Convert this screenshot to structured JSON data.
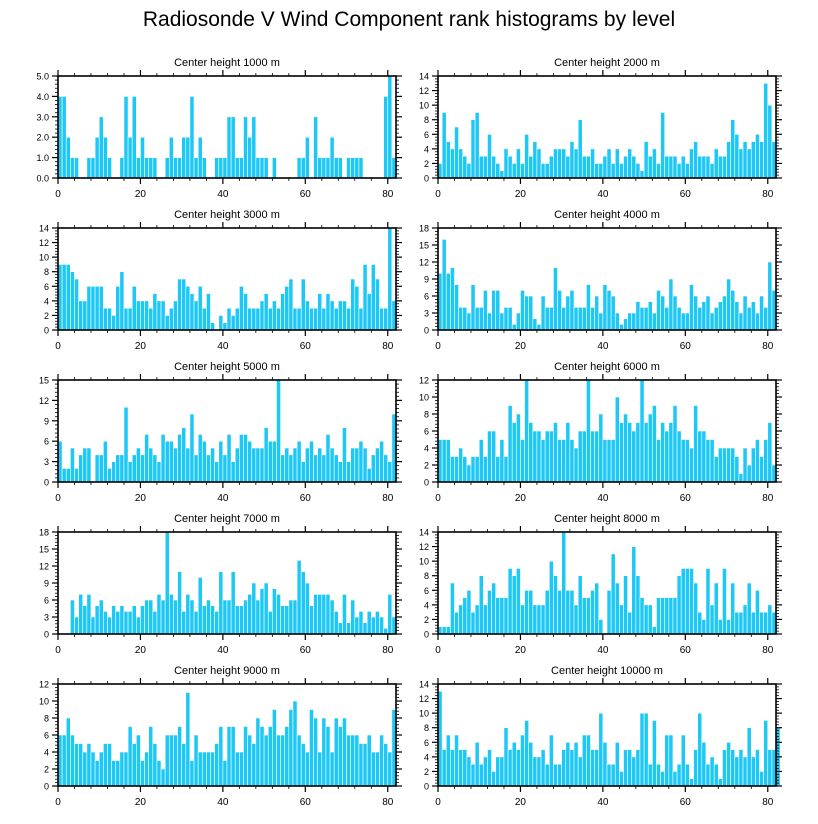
{
  "title": "Radiosonde V Wind Component rank histograms by level",
  "colors": {
    "bar": "#1ec8f5",
    "bar_edge": "#ffffff",
    "axis": "#000000"
  },
  "chart_data": [
    {
      "type": "bar",
      "title": "Center height 1000 m",
      "xlim": [
        0,
        82
      ],
      "xticks": [
        0,
        20,
        40,
        60,
        80
      ],
      "ylim": [
        0,
        5
      ],
      "yticks": [
        "0.0",
        "1.0",
        "2.0",
        "3.0",
        "4.0",
        "5.0"
      ],
      "ytick_values": [
        0,
        1,
        2,
        3,
        4,
        5
      ],
      "values": [
        4,
        4,
        2,
        1,
        1,
        0,
        0,
        1,
        1,
        2,
        3,
        2,
        1,
        0,
        0,
        1,
        4,
        2,
        4,
        1,
        2,
        1,
        1,
        1,
        0,
        0,
        1,
        2,
        1,
        1,
        2,
        2,
        4,
        1,
        2,
        1,
        0,
        0,
        1,
        1,
        1,
        3,
        3,
        1,
        1,
        3,
        2,
        3,
        1,
        1,
        1,
        0,
        1,
        0,
        0,
        0,
        0,
        0,
        1,
        1,
        2,
        0,
        3,
        1,
        1,
        1,
        2,
        1,
        1,
        0,
        1,
        1,
        1,
        1,
        0,
        0,
        0,
        0,
        0,
        4,
        5,
        1
      ]
    },
    {
      "type": "bar",
      "title": "Center height 2000 m",
      "xlim": [
        0,
        82
      ],
      "xticks": [
        0,
        20,
        40,
        60,
        80
      ],
      "ylim": [
        0,
        14
      ],
      "yticks": [
        "0",
        "2",
        "4",
        "6",
        "8",
        "10",
        "12",
        "14"
      ],
      "ytick_values": [
        0,
        2,
        4,
        6,
        8,
        10,
        12,
        14
      ],
      "values": [
        2,
        9,
        5,
        4,
        7,
        4,
        3,
        2,
        8,
        9,
        3,
        3,
        6,
        3,
        2,
        1,
        4,
        3,
        2,
        4,
        2,
        6,
        3,
        5,
        4,
        2,
        2,
        3,
        4,
        4,
        4,
        3,
        5,
        4,
        8,
        3,
        3,
        4,
        2,
        2,
        3,
        4,
        2,
        4,
        2,
        3,
        4,
        3,
        2,
        1,
        5,
        3,
        4,
        2,
        9,
        3,
        3,
        3,
        2,
        3,
        2,
        4,
        5,
        3,
        3,
        3,
        2,
        4,
        3,
        3,
        5,
        8,
        6,
        4,
        5,
        4,
        5,
        6,
        5,
        13,
        10,
        5
      ]
    },
    {
      "type": "bar",
      "title": "Center height 3000 m",
      "xlim": [
        0,
        82
      ],
      "xticks": [
        0,
        20,
        40,
        60,
        80
      ],
      "ylim": [
        0,
        14
      ],
      "yticks": [
        "0",
        "2",
        "4",
        "6",
        "8",
        "10",
        "12",
        "14"
      ],
      "ytick_values": [
        0,
        2,
        4,
        6,
        8,
        10,
        12,
        14
      ],
      "values": [
        9,
        9,
        9,
        8,
        7,
        4,
        4,
        6,
        6,
        6,
        6,
        3,
        3,
        2,
        6,
        8,
        3,
        3,
        6,
        4,
        4,
        4,
        3,
        5,
        4,
        4,
        2,
        3,
        4,
        7,
        7,
        6,
        5,
        4,
        6,
        3,
        5,
        1,
        0,
        2,
        1,
        3,
        2,
        3,
        6,
        5,
        3,
        3,
        3,
        4,
        5,
        3,
        4,
        3,
        5,
        6,
        7,
        3,
        3,
        7,
        4,
        3,
        3,
        5,
        3,
        5,
        4,
        3,
        4,
        4,
        3,
        7,
        6,
        3,
        9,
        5,
        9,
        7,
        3,
        3,
        14,
        4
      ]
    },
    {
      "type": "bar",
      "title": "Center height 4000 m",
      "xlim": [
        0,
        82
      ],
      "xticks": [
        0,
        20,
        40,
        60,
        80
      ],
      "ylim": [
        0,
        18
      ],
      "yticks": [
        "0",
        "3",
        "6",
        "9",
        "12",
        "15",
        "18"
      ],
      "ytick_values": [
        0,
        3,
        6,
        9,
        12,
        15,
        18
      ],
      "values": [
        10,
        16,
        10,
        11,
        8,
        4,
        4,
        3,
        8,
        4,
        4,
        7,
        3,
        7,
        7,
        3,
        4,
        4,
        1,
        3,
        7,
        6,
        6,
        2,
        1,
        6,
        4,
        4,
        11,
        7,
        4,
        6,
        7,
        4,
        4,
        4,
        8,
        4,
        6,
        3,
        8,
        7,
        6,
        3,
        1,
        2,
        3,
        3,
        5,
        4,
        4,
        5,
        3,
        7,
        6,
        4,
        9,
        6,
        4,
        3,
        3,
        8,
        6,
        4,
        5,
        6,
        3,
        4,
        5,
        6,
        9,
        7,
        5,
        3,
        6,
        4,
        5,
        3,
        6,
        4,
        12,
        7
      ]
    },
    {
      "type": "bar",
      "title": "Center height 5000 m",
      "xlim": [
        0,
        82
      ],
      "xticks": [
        0,
        20,
        40,
        60,
        80
      ],
      "ylim": [
        0,
        15
      ],
      "yticks": [
        "0",
        "3",
        "6",
        "9",
        "12",
        "15"
      ],
      "ytick_values": [
        0,
        3,
        6,
        9,
        12,
        15
      ],
      "values": [
        6,
        2,
        2,
        5,
        2,
        4,
        5,
        5,
        0,
        4,
        4,
        6,
        2,
        3,
        4,
        4,
        11,
        3,
        4,
        5,
        4,
        7,
        5,
        4,
        3,
        7,
        6,
        6,
        5,
        7,
        8,
        5,
        10,
        4,
        7,
        6,
        4,
        5,
        3,
        6,
        4,
        7,
        3,
        5,
        7,
        7,
        6,
        5,
        5,
        5,
        8,
        6,
        6,
        15,
        4,
        5,
        4,
        5,
        6,
        3,
        5,
        6,
        4,
        5,
        4,
        7,
        5,
        4,
        3,
        8,
        3,
        5,
        5,
        6,
        5,
        2,
        4,
        5,
        6,
        4,
        3,
        10
      ]
    },
    {
      "type": "bar",
      "title": "Center height 6000 m",
      "xlim": [
        0,
        82
      ],
      "xticks": [
        0,
        20,
        40,
        60,
        80
      ],
      "ylim": [
        0,
        12
      ],
      "yticks": [
        "0",
        "2",
        "4",
        "6",
        "8",
        "10",
        "12"
      ],
      "ytick_values": [
        0,
        2,
        4,
        6,
        8,
        10,
        12
      ],
      "values": [
        5,
        5,
        5,
        3,
        3,
        4,
        3,
        2,
        3,
        3,
        5,
        3,
        6,
        6,
        3,
        5,
        3,
        9,
        7,
        8,
        5,
        12,
        7,
        6,
        6,
        5,
        6,
        6,
        7,
        5,
        5,
        7,
        5,
        4,
        6,
        6,
        12,
        6,
        6,
        8,
        5,
        5,
        5,
        10,
        7,
        8,
        7,
        6,
        7,
        12,
        7,
        8,
        9,
        5,
        7,
        6,
        7,
        9,
        6,
        5,
        5,
        4,
        9,
        6,
        6,
        5,
        5,
        3,
        4,
        4,
        4,
        4,
        3,
        1,
        4,
        2,
        4,
        5,
        3,
        5,
        7,
        2
      ]
    },
    {
      "type": "bar",
      "title": "Center height 7000 m",
      "xlim": [
        0,
        82
      ],
      "xticks": [
        0,
        20,
        40,
        60,
        80
      ],
      "ylim": [
        0,
        18
      ],
      "yticks": [
        "0",
        "3",
        "6",
        "9",
        "12",
        "15",
        "18"
      ],
      "ytick_values": [
        0,
        3,
        6,
        9,
        12,
        15,
        18
      ],
      "values": [
        0,
        0,
        0,
        6,
        3,
        7,
        5,
        7,
        3,
        5,
        6,
        4,
        3,
        5,
        4,
        5,
        4,
        4,
        5,
        3,
        5,
        6,
        6,
        4,
        7,
        6,
        18,
        7,
        6,
        11,
        4,
        7,
        6,
        4,
        10,
        5,
        6,
        5,
        4,
        11,
        6,
        6,
        11,
        5,
        5,
        6,
        7,
        9,
        6,
        8,
        9,
        4,
        8,
        7,
        5,
        5,
        6,
        6,
        13,
        11,
        9,
        5,
        7,
        7,
        7,
        7,
        6,
        4,
        2,
        7,
        2,
        6,
        3,
        4,
        2,
        4,
        3,
        4,
        3,
        1,
        7,
        3
      ]
    },
    {
      "type": "bar",
      "title": "Center height 8000 m",
      "xlim": [
        0,
        82
      ],
      "xticks": [
        0,
        20,
        40,
        60,
        80
      ],
      "ylim": [
        0,
        14
      ],
      "yticks": [
        "0",
        "2",
        "4",
        "6",
        "8",
        "10",
        "12",
        "14"
      ],
      "ytick_values": [
        0,
        2,
        4,
        6,
        8,
        10,
        12,
        14
      ],
      "values": [
        1,
        1,
        1,
        7,
        3,
        4,
        5,
        6,
        3,
        4,
        8,
        4,
        6,
        7,
        5,
        5,
        5,
        9,
        8,
        9,
        4,
        6,
        6,
        4,
        4,
        4,
        6,
        10,
        8,
        6,
        14,
        6,
        6,
        4,
        8,
        5,
        5,
        6,
        7,
        2,
        0,
        6,
        11,
        7,
        4,
        8,
        3,
        12,
        8,
        5,
        4,
        4,
        1,
        5,
        5,
        5,
        5,
        5,
        8,
        9,
        9,
        9,
        7,
        3,
        2,
        9,
        4,
        7,
        2,
        9,
        2,
        7,
        3,
        3,
        4,
        7,
        3,
        6,
        3,
        3,
        4,
        3
      ]
    },
    {
      "type": "bar",
      "title": "Center height 9000 m",
      "xlim": [
        0,
        82
      ],
      "xticks": [
        0,
        20,
        40,
        60,
        80
      ],
      "ylim": [
        0,
        12
      ],
      "yticks": [
        "0",
        "2",
        "4",
        "6",
        "8",
        "10",
        "12"
      ],
      "ytick_values": [
        0,
        2,
        4,
        6,
        8,
        10,
        12
      ],
      "values": [
        6,
        6,
        8,
        6,
        5,
        5,
        4,
        5,
        4,
        3,
        4,
        5,
        5,
        3,
        3,
        4,
        4,
        7,
        5,
        6,
        3,
        4,
        7,
        5,
        3,
        2,
        6,
        6,
        6,
        7,
        5,
        11,
        3,
        6,
        4,
        4,
        4,
        4,
        5,
        7,
        3,
        7,
        7,
        4,
        4,
        7,
        6,
        5,
        8,
        7,
        6,
        7,
        9,
        6,
        6,
        7,
        9,
        10,
        6,
        5,
        4,
        9,
        8,
        4,
        8,
        7,
        4,
        8,
        7,
        8,
        6,
        6,
        6,
        5,
        5,
        6,
        4,
        4,
        6,
        5,
        4,
        9
      ]
    },
    {
      "type": "bar",
      "title": "Center height 10000 m",
      "xlim": [
        0,
        82
      ],
      "xticks": [
        0,
        20,
        40,
        60,
        80
      ],
      "ylim": [
        0,
        14
      ],
      "yticks": [
        "0",
        "2",
        "4",
        "6",
        "8",
        "10",
        "12",
        "14"
      ],
      "ytick_values": [
        0,
        2,
        4,
        6,
        8,
        10,
        12,
        14
      ],
      "values": [
        13,
        5,
        7,
        5,
        7,
        5,
        5,
        4,
        3,
        6,
        3,
        4,
        5,
        2,
        4,
        4,
        8,
        5,
        6,
        5,
        7,
        9,
        6,
        4,
        4,
        5,
        3,
        7,
        3,
        3,
        5,
        6,
        5,
        6,
        4,
        7,
        7,
        5,
        5,
        10,
        6,
        3,
        3,
        6,
        2,
        5,
        5,
        4,
        5,
        10,
        10,
        3,
        9,
        3,
        2,
        7,
        7,
        2,
        3,
        7,
        3,
        1,
        5,
        10,
        6,
        3,
        4,
        3,
        1,
        5,
        6,
        5,
        4,
        5,
        4,
        8,
        4,
        5,
        2,
        9,
        5,
        5,
        8
      ]
    }
  ]
}
